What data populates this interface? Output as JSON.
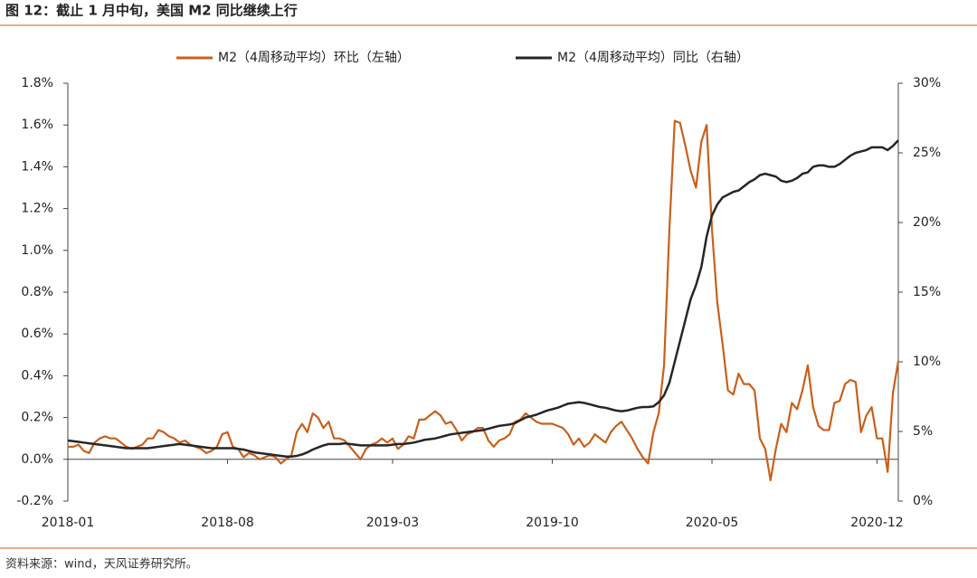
{
  "header": {
    "title": "图 12：截止 1 月中旬，美国 M2 同比继续上行"
  },
  "footer": {
    "source": "资料来源：wind，天风证券研究所。"
  },
  "chart_data": {
    "type": "line",
    "categories": [
      "2018-01",
      null,
      null,
      null,
      null,
      null,
      null,
      null,
      null,
      null,
      null,
      null,
      null,
      null,
      null,
      null,
      null,
      null,
      null,
      null,
      null,
      null,
      null,
      null,
      null,
      null,
      null,
      null,
      null,
      null,
      "2018-08",
      null,
      null,
      null,
      null,
      null,
      null,
      null,
      null,
      null,
      null,
      null,
      null,
      null,
      null,
      null,
      null,
      null,
      null,
      null,
      null,
      null,
      null,
      null,
      null,
      null,
      null,
      null,
      null,
      null,
      null,
      "2019-03",
      null,
      null,
      null,
      null,
      null,
      null,
      null,
      null,
      null,
      null,
      null,
      null,
      null,
      null,
      null,
      null,
      null,
      null,
      null,
      null,
      null,
      null,
      null,
      null,
      null,
      null,
      null,
      null,
      null,
      "2019-10",
      null,
      null,
      null,
      null,
      null,
      null,
      null,
      null,
      null,
      null,
      null,
      null,
      null,
      null,
      null,
      null,
      null,
      null,
      null,
      null,
      null,
      null,
      null,
      null,
      null,
      null,
      null,
      null,
      null,
      "2020-05",
      null,
      null,
      null,
      null,
      null,
      null,
      null,
      null,
      null,
      null,
      null,
      null,
      null,
      null,
      null,
      null,
      null,
      null,
      null,
      null,
      null,
      null,
      null,
      null,
      null,
      null,
      null,
      null,
      null,
      null,
      "2020-12",
      null,
      null,
      null,
      null
    ],
    "series": [
      {
        "name": "M2（4周移动平均）环比（左轴）",
        "color": "#c8601c",
        "axis": "y",
        "values": [
          0.06,
          0.06,
          0.07,
          0.04,
          0.03,
          0.08,
          0.1,
          0.11,
          0.1,
          0.1,
          0.08,
          0.06,
          0.05,
          0.06,
          0.07,
          0.1,
          0.1,
          0.14,
          0.13,
          0.11,
          0.1,
          0.08,
          0.09,
          0.07,
          0.06,
          0.05,
          0.03,
          0.04,
          0.06,
          0.12,
          0.13,
          0.06,
          0.05,
          0.01,
          0.03,
          0.02,
          0.0,
          0.01,
          0.02,
          0.01,
          -0.02,
          0.0,
          0.02,
          0.13,
          0.17,
          0.13,
          0.22,
          0.2,
          0.15,
          0.18,
          0.1,
          0.1,
          0.09,
          0.06,
          0.03,
          0.0,
          0.05,
          0.07,
          0.08,
          0.1,
          0.08,
          0.1,
          0.05,
          0.07,
          0.11,
          0.1,
          0.19,
          0.19,
          0.21,
          0.23,
          0.21,
          0.17,
          0.18,
          0.14,
          0.09,
          0.12,
          0.13,
          0.15,
          0.15,
          0.09,
          0.06,
          0.09,
          0.1,
          0.12,
          0.18,
          0.19,
          0.22,
          0.2,
          0.18,
          0.17,
          0.17,
          0.17,
          0.16,
          0.15,
          0.12,
          0.07,
          0.1,
          0.06,
          0.08,
          0.12,
          0.1,
          0.08,
          0.13,
          0.16,
          0.18,
          0.14,
          0.1,
          0.05,
          0.01,
          -0.02,
          0.13,
          0.22,
          0.45,
          1.1,
          1.62,
          1.61,
          1.5,
          1.38,
          1.3,
          1.52,
          1.6,
          1.1,
          0.75,
          0.55,
          0.33,
          0.31,
          0.41,
          0.36,
          0.36,
          0.33,
          0.1,
          0.05,
          -0.1,
          0.05,
          0.17,
          0.13,
          0.27,
          0.24,
          0.33,
          0.45,
          0.25,
          0.16,
          0.14,
          0.14,
          0.27,
          0.28,
          0.36,
          0.38,
          0.37,
          0.13,
          0.21,
          0.25,
          0.1,
          0.1,
          -0.06,
          0.32,
          0.47
        ]
      },
      {
        "name": "M2（4周移动平均）同比（右轴）",
        "color": "#262626",
        "axis": "y2",
        "values": [
          4.35,
          4.3,
          4.25,
          4.2,
          4.15,
          4.1,
          4.05,
          4.0,
          3.95,
          3.9,
          3.85,
          3.8,
          3.8,
          3.8,
          3.8,
          3.8,
          3.85,
          3.9,
          3.95,
          4.0,
          4.05,
          4.1,
          4.05,
          4.0,
          3.95,
          3.9,
          3.85,
          3.8,
          3.8,
          3.8,
          3.8,
          3.8,
          3.75,
          3.7,
          3.6,
          3.5,
          3.45,
          3.4,
          3.35,
          3.3,
          3.25,
          3.2,
          3.2,
          3.25,
          3.35,
          3.5,
          3.7,
          3.85,
          4.0,
          4.1,
          4.1,
          4.1,
          4.15,
          4.1,
          4.05,
          4.0,
          4.0,
          4.0,
          4.0,
          4.0,
          4.0,
          4.05,
          4.1,
          4.1,
          4.15,
          4.2,
          4.3,
          4.4,
          4.45,
          4.5,
          4.6,
          4.7,
          4.8,
          4.85,
          4.9,
          4.95,
          5.0,
          5.05,
          5.1,
          5.2,
          5.3,
          5.4,
          5.45,
          5.5,
          5.6,
          5.8,
          6.0,
          6.1,
          6.2,
          6.35,
          6.5,
          6.6,
          6.7,
          6.85,
          7.0,
          7.05,
          7.1,
          7.05,
          6.95,
          6.85,
          6.75,
          6.7,
          6.6,
          6.5,
          6.45,
          6.5,
          6.6,
          6.7,
          6.75,
          6.75,
          6.8,
          7.1,
          7.6,
          8.5,
          10.0,
          11.5,
          13.0,
          14.5,
          15.5,
          16.8,
          19.0,
          20.5,
          21.3,
          21.8,
          22.0,
          22.2,
          22.3,
          22.6,
          22.9,
          23.1,
          23.4,
          23.5,
          23.4,
          23.3,
          23.0,
          22.9,
          23.0,
          23.2,
          23.5,
          23.6,
          24.0,
          24.1,
          24.1,
          24.0,
          24.0,
          24.2,
          24.5,
          24.8,
          25.0,
          25.1,
          25.2,
          25.4,
          25.4,
          25.4,
          25.2,
          25.5,
          25.9
        ]
      }
    ],
    "ylim": [
      -0.2,
      1.8
    ],
    "yticks": [
      {
        "value": -0.2,
        "label": "-0.2%"
      },
      {
        "value": 0.0,
        "label": "0.0%"
      },
      {
        "value": 0.2,
        "label": "0.2%"
      },
      {
        "value": 0.4,
        "label": "0.4%"
      },
      {
        "value": 0.6,
        "label": "0.6%"
      },
      {
        "value": 0.8,
        "label": "0.8%"
      },
      {
        "value": 1.0,
        "label": "1.0%"
      },
      {
        "value": 1.2,
        "label": "1.2%"
      },
      {
        "value": 1.4,
        "label": "1.4%"
      },
      {
        "value": 1.6,
        "label": "1.6%"
      },
      {
        "value": 1.8,
        "label": "1.8%"
      }
    ],
    "y2lim": [
      0,
      30
    ],
    "y2ticks": [
      {
        "value": 0,
        "label": "0%"
      },
      {
        "value": 5,
        "label": "5%"
      },
      {
        "value": 10,
        "label": "10%"
      },
      {
        "value": 15,
        "label": "15%"
      },
      {
        "value": 20,
        "label": "20%"
      },
      {
        "value": 25,
        "label": "25%"
      },
      {
        "value": 30,
        "label": "30%"
      }
    ],
    "grid": false,
    "legend": "top"
  }
}
